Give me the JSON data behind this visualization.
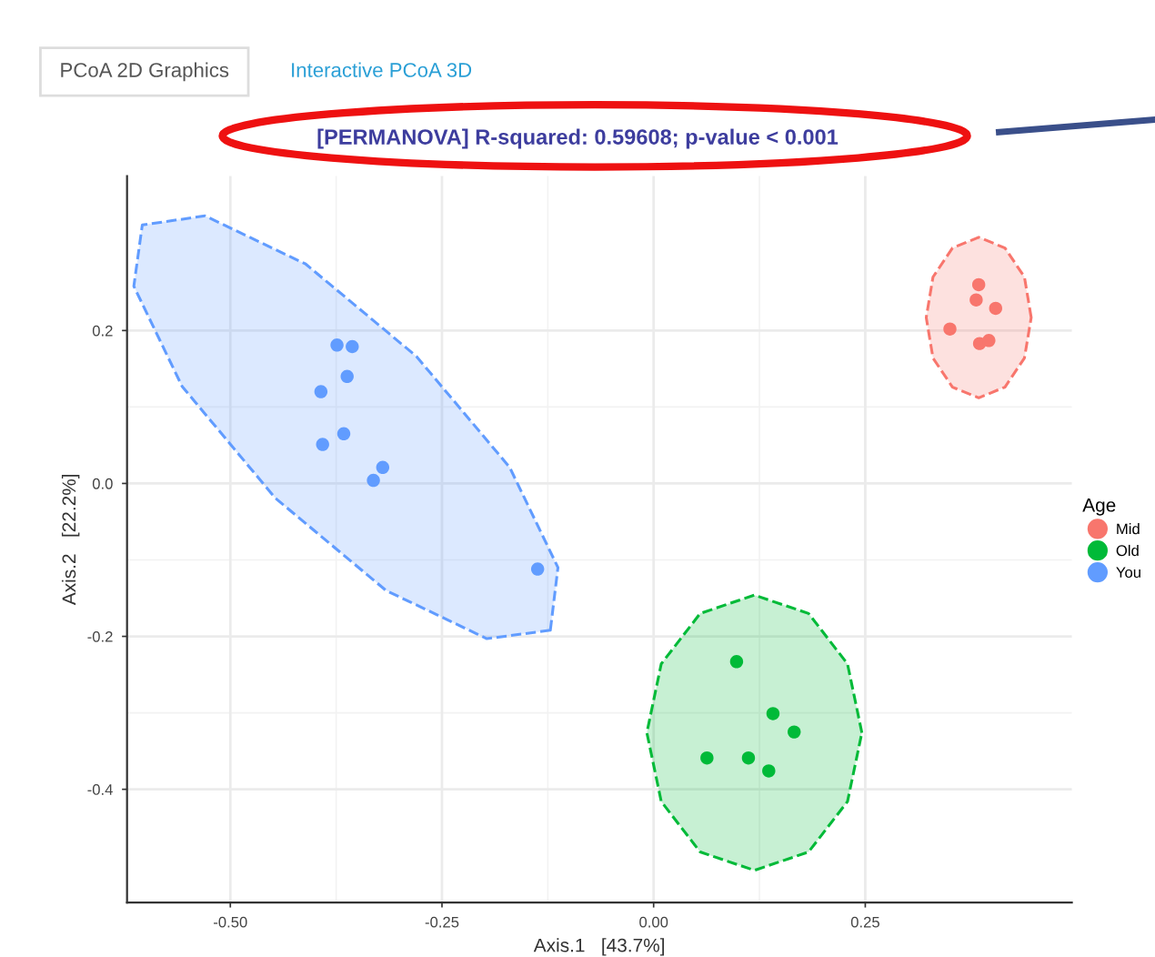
{
  "chart_data": {
    "type": "scatter",
    "title": "[PERMANOVA] R-squared: 0.59608; p-value < 0.001",
    "xlabel": "Axis.1   [43.7%]",
    "ylabel": "Axis.2   [22.2%]",
    "legend_title": "Age",
    "annotations": [
      "PCoA 2D Graphics",
      "Interactive PCoA 3D"
    ],
    "xlim": [
      -0.622,
      0.494
    ],
    "ylim": [
      -0.548,
      0.402
    ],
    "xticks": [
      {
        "value": -0.5,
        "label": "-0.50"
      },
      {
        "value": -0.25,
        "label": "-0.25"
      },
      {
        "value": 0,
        "label": "0.00"
      },
      {
        "value": 0.25,
        "label": "0.25"
      }
    ],
    "yticks": [
      {
        "value": -0.4,
        "label": "-0.4"
      },
      {
        "value": -0.2,
        "label": "-0.2"
      },
      {
        "value": 0,
        "label": "0.0"
      },
      {
        "value": 0.2,
        "label": "0.2"
      }
    ],
    "grid": true,
    "legend": "right",
    "marker": "circle",
    "series": [
      {
        "type": "area",
        "color": "#f8766d",
        "line_style": "dashed",
        "marker": "none",
        "x": [
          0.446,
          0.438,
          0.415,
          0.384,
          0.353,
          0.33,
          0.322,
          0.33,
          0.353,
          0.384,
          0.415,
          0.438
        ],
        "values": [
          0.217,
          0.27,
          0.308,
          0.322,
          0.308,
          0.27,
          0.217,
          0.164,
          0.126,
          0.112,
          0.126,
          0.164
        ]
      },
      {
        "type": "area",
        "color": "#00ba38",
        "line_style": "dashed",
        "marker": "none",
        "x": [
          0.246,
          0.229,
          0.183,
          0.119,
          0.055,
          0.009,
          -0.008,
          0.009,
          0.055,
          0.119,
          0.183,
          0.229
        ],
        "values": [
          -0.326,
          -0.236,
          -0.17,
          -0.146,
          -0.17,
          -0.236,
          -0.326,
          -0.416,
          -0.482,
          -0.506,
          -0.482,
          -0.416
        ]
      },
      {
        "type": "area",
        "color": "#619cff",
        "line_style": "dashed",
        "marker": "none",
        "x": [
          -0.122,
          -0.113,
          -0.17,
          -0.28,
          -0.411,
          -0.53,
          -0.604,
          -0.614,
          -0.557,
          -0.447,
          -0.316,
          -0.197
        ],
        "values": [
          -0.192,
          -0.11,
          0.021,
          0.166,
          0.287,
          0.35,
          0.338,
          0.258,
          0.127,
          -0.019,
          -0.14,
          -0.203
        ]
      },
      {
        "name": "Mid",
        "color": "#f8766d",
        "x": [
          0.384,
          0.381,
          0.404,
          0.35,
          0.385,
          0.396
        ],
        "values": [
          0.26,
          0.24,
          0.229,
          0.202,
          0.183,
          0.187
        ]
      },
      {
        "name": "Old",
        "color": "#00ba38",
        "x": [
          0.098,
          0.141,
          0.166,
          0.063,
          0.112,
          0.136
        ],
        "values": [
          -0.233,
          -0.301,
          -0.325,
          -0.359,
          -0.359,
          -0.376
        ]
      },
      {
        "name": "You",
        "color": "#619cff",
        "x": [
          -0.374,
          -0.356,
          -0.362,
          -0.393,
          -0.366,
          -0.391,
          -0.32,
          -0.331,
          -0.137
        ],
        "values": [
          0.181,
          0.179,
          0.14,
          0.12,
          0.065,
          0.051,
          0.021,
          0.004,
          -0.112
        ]
      }
    ]
  }
}
